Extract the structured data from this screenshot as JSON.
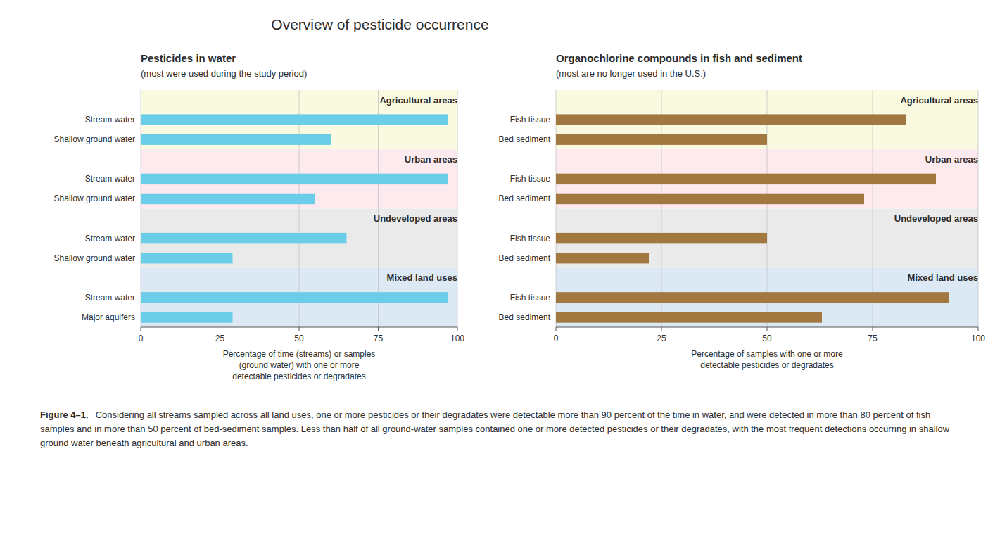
{
  "title": "Overview of pesticide occurrence",
  "caption_label": "Figure 4–1.",
  "caption": "Considering all streams sampled across all land uses, one or more pesticides or their degradates were detectable more than 90 percent of the time in water, and were detected in more than 80 percent of fish samples and in more than 50 percent of bed-sediment samples. Less than half of all ground-water samples contained one or more detected pesticides or their degradates, with the most frequent detections occurring in shallow ground water beneath agricultural and urban areas.",
  "chart_data": [
    {
      "type": "bar",
      "orientation": "horizontal",
      "title": "Pesticides in water",
      "subtitle": "(most were used during the study period)",
      "xlabel": "Percentage of time (streams) or samples\n(ground water) with one or more\ndetectable pesticides or degradates",
      "color": "#6BCDE8",
      "xlim": [
        0,
        100
      ],
      "xticks": [
        0,
        25,
        50,
        75,
        100
      ],
      "grid": true,
      "groups": [
        {
          "name": "Agricultural areas",
          "color": "#FAFAE0",
          "categories": [
            "Stream water",
            "Shallow ground water"
          ],
          "values": [
            97,
            60
          ]
        },
        {
          "name": "Urban areas",
          "color": "#FDEAEE",
          "categories": [
            "Stream water",
            "Shallow ground water"
          ],
          "values": [
            97,
            55
          ]
        },
        {
          "name": "Undeveloped areas",
          "color": "#EAEAEA",
          "categories": [
            "Stream water",
            "Shallow ground water"
          ],
          "values": [
            65,
            29
          ]
        },
        {
          "name": "Mixed land uses",
          "color": "#DCE9F5",
          "categories": [
            "Stream water",
            "Major aquifers"
          ],
          "values": [
            97,
            29
          ]
        }
      ]
    },
    {
      "type": "bar",
      "orientation": "horizontal",
      "title": "Organochlorine compounds in fish and sediment",
      "subtitle": "(most are no longer used in the U.S.)",
      "xlabel": "Percentage of samples with one or more\ndetectable pesticides or degradates",
      "color": "#A07840",
      "xlim": [
        0,
        100
      ],
      "xticks": [
        0,
        25,
        50,
        75,
        100
      ],
      "grid": true,
      "groups": [
        {
          "name": "Agricultural areas",
          "color": "#FAFAE0",
          "categories": [
            "Fish tissue",
            "Bed sediment"
          ],
          "values": [
            83,
            50
          ]
        },
        {
          "name": "Urban areas",
          "color": "#FDEAEE",
          "categories": [
            "Fish tissue",
            "Bed sediment"
          ],
          "values": [
            90,
            73
          ]
        },
        {
          "name": "Undeveloped areas",
          "color": "#EAEAEA",
          "categories": [
            "Fish tissue",
            "Bed sediment"
          ],
          "values": [
            50,
            22
          ]
        },
        {
          "name": "Mixed land uses",
          "color": "#DCE9F5",
          "categories": [
            "Fish tissue",
            "Bed sediment"
          ],
          "values": [
            93,
            63
          ]
        }
      ]
    }
  ]
}
